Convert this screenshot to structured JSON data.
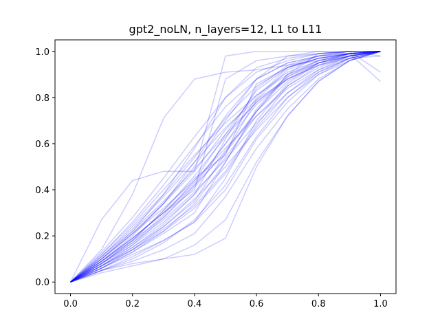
{
  "chart_data": {
    "type": "line",
    "title": "gpt2_noLN, n_layers=12, L1 to L11",
    "xlabel": "",
    "ylabel": "",
    "xlim": [
      -0.05,
      1.05
    ],
    "ylim": [
      -0.05,
      1.05
    ],
    "xticks": [
      0.0,
      0.2,
      0.4,
      0.6,
      0.8,
      1.0
    ],
    "xtick_labels": [
      "0.0",
      "0.2",
      "0.4",
      "0.6",
      "0.8",
      "1.0"
    ],
    "yticks": [
      0.0,
      0.2,
      0.4,
      0.6,
      0.8,
      1.0
    ],
    "ytick_labels": [
      "0.0",
      "0.2",
      "0.4",
      "0.6",
      "0.8",
      "1.0"
    ],
    "grid": false,
    "legend": "none",
    "line_color": "#0000ff",
    "line_alpha": 0.2,
    "x": [
      0.0,
      0.1,
      0.2,
      0.3,
      0.4,
      0.5,
      0.6,
      0.7,
      0.8,
      0.9,
      1.0
    ],
    "series": [
      {
        "values": [
          0.0,
          0.27,
          0.44,
          0.48,
          0.48,
          0.98,
          1.0,
          1.0,
          1.0,
          1.0,
          1.0
        ]
      },
      {
        "values": [
          0.0,
          0.14,
          0.38,
          0.71,
          0.88,
          0.91,
          0.92,
          0.94,
          0.96,
          0.98,
          1.0
        ]
      },
      {
        "values": [
          0.0,
          0.05,
          0.08,
          0.1,
          0.12,
          0.19,
          0.5,
          0.72,
          0.87,
          0.96,
          1.0
        ]
      },
      {
        "values": [
          0.0,
          0.04,
          0.07,
          0.1,
          0.16,
          0.27,
          0.52,
          0.72,
          0.87,
          0.96,
          1.0
        ]
      },
      {
        "values": [
          0.0,
          0.05,
          0.09,
          0.14,
          0.21,
          0.37,
          0.58,
          0.75,
          0.88,
          0.96,
          1.0
        ]
      },
      {
        "values": [
          0.0,
          0.06,
          0.12,
          0.18,
          0.26,
          0.4,
          0.62,
          0.78,
          0.9,
          0.97,
          1.0
        ]
      },
      {
        "values": [
          0.0,
          0.07,
          0.14,
          0.22,
          0.32,
          0.47,
          0.67,
          0.82,
          0.92,
          0.98,
          1.0
        ]
      },
      {
        "values": [
          0.0,
          0.08,
          0.16,
          0.26,
          0.38,
          0.54,
          0.72,
          0.85,
          0.93,
          0.98,
          1.0
        ]
      },
      {
        "values": [
          0.0,
          0.09,
          0.19,
          0.3,
          0.43,
          0.6,
          0.77,
          0.88,
          0.95,
          0.99,
          1.0
        ]
      },
      {
        "values": [
          0.0,
          0.1,
          0.21,
          0.34,
          0.48,
          0.66,
          0.81,
          0.91,
          0.96,
          0.99,
          1.0
        ]
      },
      {
        "values": [
          0.0,
          0.11,
          0.24,
          0.38,
          0.54,
          0.71,
          0.85,
          0.93,
          0.97,
          0.99,
          1.0
        ]
      },
      {
        "values": [
          0.0,
          0.12,
          0.26,
          0.42,
          0.59,
          0.76,
          0.88,
          0.95,
          0.98,
          0.99,
          1.0
        ]
      },
      {
        "values": [
          0.0,
          0.13,
          0.28,
          0.45,
          0.63,
          0.8,
          0.91,
          0.96,
          0.99,
          1.0,
          1.0
        ]
      },
      {
        "values": [
          0.0,
          0.07,
          0.15,
          0.24,
          0.35,
          0.56,
          0.79,
          0.92,
          0.97,
          0.99,
          1.0
        ]
      },
      {
        "values": [
          0.0,
          0.06,
          0.13,
          0.21,
          0.3,
          0.52,
          0.75,
          0.9,
          0.96,
          0.99,
          1.0
        ]
      },
      {
        "values": [
          0.0,
          0.05,
          0.11,
          0.18,
          0.26,
          0.45,
          0.7,
          0.86,
          0.95,
          0.98,
          1.0
        ]
      },
      {
        "values": [
          0.0,
          0.09,
          0.2,
          0.34,
          0.52,
          0.72,
          0.88,
          0.95,
          0.98,
          0.99,
          1.0
        ]
      },
      {
        "values": [
          0.0,
          0.1,
          0.22,
          0.38,
          0.58,
          0.8,
          0.93,
          0.97,
          0.99,
          1.0,
          1.0
        ]
      },
      {
        "values": [
          0.0,
          0.08,
          0.17,
          0.29,
          0.44,
          0.64,
          0.83,
          0.93,
          0.97,
          0.99,
          1.0
        ]
      },
      {
        "values": [
          0.0,
          0.07,
          0.15,
          0.25,
          0.38,
          0.62,
          0.84,
          0.94,
          0.98,
          1.0,
          1.0
        ]
      },
      {
        "values": [
          0.0,
          0.08,
          0.18,
          0.31,
          0.45,
          0.55,
          0.86,
          0.93,
          0.97,
          0.99,
          1.0
        ]
      },
      {
        "values": [
          0.0,
          0.09,
          0.19,
          0.3,
          0.4,
          0.88,
          0.96,
          0.98,
          0.99,
          1.0,
          1.0
        ]
      },
      {
        "values": [
          0.0,
          0.11,
          0.23,
          0.37,
          0.52,
          0.67,
          0.79,
          0.88,
          0.94,
          0.98,
          1.0
        ]
      },
      {
        "values": [
          0.0,
          0.1,
          0.21,
          0.32,
          0.44,
          0.58,
          0.72,
          0.84,
          0.92,
          0.97,
          1.0
        ]
      },
      {
        "values": [
          0.0,
          0.08,
          0.17,
          0.27,
          0.39,
          0.53,
          0.69,
          0.82,
          0.91,
          0.97,
          1.0
        ]
      },
      {
        "values": [
          0.0,
          0.06,
          0.14,
          0.24,
          0.36,
          0.5,
          0.66,
          0.8,
          0.9,
          0.96,
          1.0
        ]
      },
      {
        "values": [
          0.0,
          0.12,
          0.25,
          0.4,
          0.55,
          0.69,
          0.81,
          0.9,
          0.95,
          0.98,
          1.0
        ]
      },
      {
        "values": [
          0.0,
          0.05,
          0.1,
          0.17,
          0.27,
          0.42,
          0.63,
          0.8,
          0.91,
          0.97,
          1.0
        ]
      },
      {
        "values": [
          0.0,
          0.07,
          0.16,
          0.28,
          0.42,
          0.6,
          0.8,
          0.93,
          0.98,
          1.0,
          0.98
        ]
      },
      {
        "values": [
          0.0,
          0.08,
          0.18,
          0.31,
          0.46,
          0.63,
          0.78,
          0.88,
          0.94,
          0.97,
          0.98
        ]
      },
      {
        "values": [
          0.0,
          0.09,
          0.19,
          0.3,
          0.42,
          0.56,
          0.74,
          0.9,
          0.99,
          1.0,
          0.91
        ]
      },
      {
        "values": [
          0.0,
          0.1,
          0.21,
          0.34,
          0.5,
          0.7,
          0.88,
          0.98,
          1.0,
          0.99,
          0.87
        ]
      },
      {
        "values": [
          0.0,
          0.06,
          0.13,
          0.22,
          0.34,
          0.52,
          0.74,
          0.89,
          0.96,
          0.99,
          1.0
        ]
      },
      {
        "values": [
          0.0,
          0.07,
          0.14,
          0.23,
          0.33,
          0.48,
          0.68,
          0.85,
          0.94,
          0.98,
          1.0
        ]
      },
      {
        "values": [
          0.0,
          0.11,
          0.22,
          0.35,
          0.49,
          0.64,
          0.78,
          0.89,
          0.95,
          0.98,
          1.0
        ]
      },
      {
        "values": [
          0.0,
          0.09,
          0.18,
          0.28,
          0.41,
          0.57,
          0.74,
          0.87,
          0.95,
          0.99,
          1.0
        ]
      }
    ]
  }
}
